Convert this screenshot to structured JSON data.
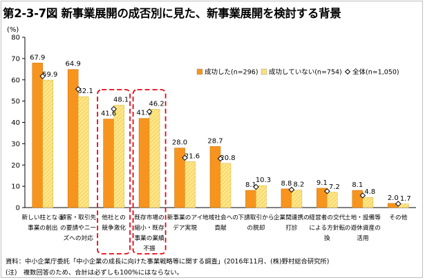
{
  "figure": {
    "title": "第2-3-7図 新事業展開の成否別に見た、新事業展開を検討する背景"
  },
  "chart_data": {
    "type": "bar",
    "ylabel": "(%)",
    "ylim": [
      0,
      80
    ],
    "yticks": [
      0,
      10,
      20,
      30,
      40,
      50,
      60,
      70,
      80
    ],
    "grid": false,
    "legend_position": "top-right",
    "categories": [
      [
        "新しい柱となる",
        "事業の創出"
      ],
      [
        "顧客・取引先",
        "の要請やニー",
        "ズへの対応"
      ],
      [
        "他社との",
        "競争激化"
      ],
      [
        "既存市場の",
        "縮小・既存",
        "事業の業績",
        "不振"
      ],
      [
        "新事業のアイ",
        "デア実現"
      ],
      [
        "地域社会への",
        "貢献"
      ],
      [
        "下請取引から",
        "の脱却"
      ],
      [
        "企業間連携の",
        "打診"
      ],
      [
        "経営者の交代",
        "による方針転",
        "換"
      ],
      [
        "土地・設備等",
        "の遊休資産の",
        "活用"
      ],
      [
        "その他"
      ]
    ],
    "series": [
      {
        "name": "成功した(n=296)",
        "values": [
          67.9,
          64.9,
          41.6,
          41.9,
          28.0,
          28.7,
          8.1,
          8.8,
          9.1,
          8.1,
          2.0
        ],
        "color": "#f7941d"
      },
      {
        "name": "成功していない(n=754)",
        "values": [
          59.9,
          52.1,
          48.1,
          46.2,
          21.6,
          20.8,
          10.3,
          8.2,
          7.2,
          4.8,
          1.7
        ],
        "color": "#ffe68a"
      }
    ],
    "overall": {
      "name": "全体(n=1,050)",
      "values": [
        61.7,
        55.6,
        46.3,
        45.1,
        23.4,
        23.0,
        9.7,
        8.4,
        7.7,
        5.7,
        1.8
      ]
    },
    "highlighted_categories": [
      2,
      3
    ]
  },
  "notes": [
    "資料：中小企業庁委託「中小企業の成長に向けた事業戦略等に関する調査」(2016年11月、(株)野村総合研究所)",
    "(注)　複数回答のため、合計は必ずしも100%にはならない。"
  ]
}
